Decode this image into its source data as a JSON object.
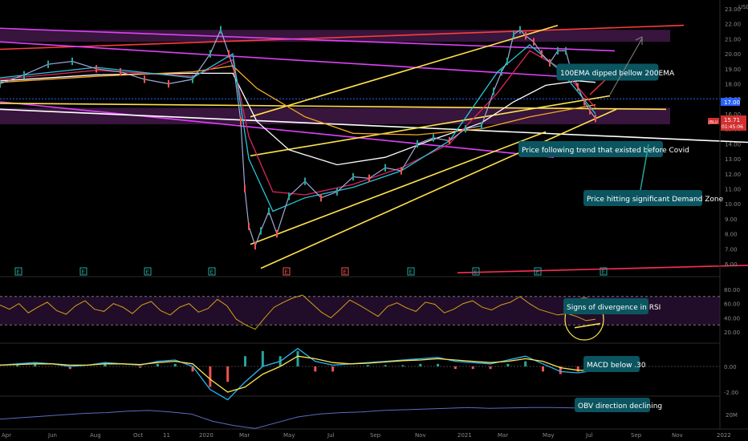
{
  "chart_data": {
    "type": "line",
    "currency": "USD",
    "symbol_label": "JBLU",
    "last_price": "15.71",
    "last_price_countdown": "01:45:06",
    "horizontal_level": "17.00",
    "price_axis": {
      "min": 6.0,
      "max": 23.0,
      "ticks": [
        "23.00",
        "22.00",
        "21.00",
        "20.00",
        "19.00",
        "18.00",
        "17.00",
        "16.00",
        "15.00",
        "14.00",
        "13.00",
        "12.00",
        "11.00",
        "10.00",
        "9.00",
        "8.00",
        "7.00",
        "6.00"
      ]
    },
    "time_axis": [
      "Apr",
      "Jun",
      "Aug",
      "Oct",
      "11",
      "2020",
      "Mar",
      "May",
      "Jul",
      "Sep",
      "Nov",
      "2021",
      "Mar",
      "May",
      "Jul",
      "Sep",
      "Nov",
      "2022"
    ],
    "price_series": {
      "name": "price",
      "x": [
        0,
        30,
        60,
        90,
        120,
        150,
        180,
        210,
        240,
        262,
        275,
        285,
        292,
        300,
        305,
        310,
        318,
        325,
        335,
        345,
        360,
        380,
        400,
        420,
        440,
        460,
        480,
        500,
        520,
        540,
        560,
        580,
        600,
        615,
        625,
        632,
        640,
        648,
        655,
        665,
        675,
        685,
        695,
        705,
        712,
        720,
        728,
        735,
        742
      ],
      "values": [
        18.0,
        18.6,
        19.3,
        19.5,
        19.0,
        18.8,
        18.3,
        18.0,
        18.3,
        20.0,
        21.6,
        20.0,
        18.8,
        15.5,
        11.0,
        8.5,
        7.2,
        8.2,
        9.5,
        8.0,
        10.5,
        11.5,
        10.4,
        10.8,
        11.8,
        11.7,
        12.4,
        12.2,
        14.0,
        14.4,
        14.2,
        15.0,
        15.2,
        17.5,
        18.8,
        19.5,
        21.3,
        21.6,
        21.2,
        20.8,
        20.0,
        19.4,
        20.2,
        20.2,
        18.8,
        17.8,
        16.8,
        16.2,
        15.7
      ]
    },
    "ema_series": [
      {
        "color": "#ffffff",
        "x": [
          0,
          120,
          240,
          290,
          320,
          360,
          420,
          480,
          540,
          600,
          640,
          680,
          720,
          742
        ],
        "values": [
          18.2,
          18.6,
          18.7,
          18.7,
          15.5,
          13.6,
          12.6,
          13.1,
          14.3,
          15.4,
          16.8,
          17.9,
          18.2,
          18.1
        ]
      },
      {
        "color": "#f5a623",
        "x": [
          0,
          120,
          240,
          290,
          320,
          380,
          440,
          520,
          600,
          660,
          720,
          742
        ],
        "values": [
          18.1,
          18.5,
          18.8,
          19.2,
          17.7,
          15.8,
          14.7,
          14.6,
          15.0,
          15.8,
          16.4,
          16.6
        ]
      },
      {
        "color": "#e0245e",
        "x": [
          0,
          120,
          240,
          290,
          310,
          340,
          380,
          440,
          500,
          560,
          620,
          660,
          700,
          742
        ],
        "values": [
          18.3,
          18.9,
          18.5,
          19.6,
          14.5,
          10.8,
          10.6,
          11.3,
          12.4,
          14.0,
          17.4,
          20.2,
          19.0,
          16.4
        ]
      },
      {
        "color": "#26c6da",
        "x": [
          0,
          120,
          240,
          290,
          310,
          340,
          380,
          440,
          500,
          560,
          620,
          660,
          700,
          742
        ],
        "values": [
          18.4,
          19.1,
          18.4,
          20.0,
          13.0,
          9.5,
          10.4,
          11.1,
          12.2,
          14.2,
          18.8,
          20.6,
          18.8,
          16.0
        ]
      }
    ],
    "trend_lines": [
      {
        "color": "#ff3b3b",
        "x": [
          0,
          852
        ],
        "values": [
          20.3,
          21.9
        ]
      },
      {
        "color": "#e040fb",
        "x": [
          0,
          766
        ],
        "values": [
          21.7,
          20.2
        ]
      },
      {
        "color": "#e040fb",
        "x": [
          0,
          757
        ],
        "values": [
          20.8,
          18.3
        ]
      },
      {
        "color": "#e040fb",
        "x": [
          0,
          690
        ],
        "values": [
          16.8,
          13.1
        ]
      },
      {
        "color": "#ffffff",
        "x": [
          0,
          932
        ],
        "values": [
          16.3,
          14.1
        ]
      },
      {
        "color": "#ff2d55",
        "x": [
          570,
          932
        ],
        "values": [
          5.4,
          5.9
        ]
      },
      {
        "color": "#ffe34d",
        "x": [
          312,
          695
        ],
        "values": [
          15.8,
          21.9
        ]
      },
      {
        "color": "#ffe34d",
        "x": [
          312,
          760
        ],
        "values": [
          13.2,
          17.2
        ]
      },
      {
        "color": "#ffe34d",
        "x": [
          325,
          768
        ],
        "values": [
          5.7,
          16.3
        ]
      },
      {
        "color": "#ffe34d",
        "x": [
          312,
          680
        ],
        "values": [
          7.3,
          14.8
        ]
      },
      {
        "color": "#ffe34d",
        "x": [
          0,
          830
        ],
        "values": [
          16.7,
          16.3
        ]
      }
    ],
    "zones": [
      {
        "from": 20.8,
        "to": 21.6,
        "color": "#7a2f86"
      },
      {
        "from": 15.3,
        "to": 16.4,
        "color": "#7a2f86"
      }
    ],
    "earnings_markers": [
      "E",
      "E",
      "E",
      "E",
      "E",
      "E",
      "E",
      "E",
      "E",
      "E",
      "E"
    ],
    "rsi": {
      "ticks": [
        "80.00",
        "60.00",
        "40.00",
        "20.00"
      ],
      "band": [
        30,
        70
      ],
      "values": [
        58,
        52,
        60,
        47,
        55,
        62,
        50,
        45,
        57,
        64,
        52,
        49,
        60,
        55,
        46,
        58,
        63,
        50,
        44,
        55,
        60,
        48,
        53,
        66,
        57,
        38,
        30,
        24,
        40,
        55,
        62,
        68,
        72,
        60,
        48,
        40,
        52,
        65,
        58,
        50,
        42,
        56,
        61,
        54,
        49,
        62,
        59,
        47,
        52,
        60,
        64,
        55,
        51,
        58,
        62,
        70,
        60,
        52,
        48,
        44,
        46,
        42,
        36,
        38
      ]
    },
    "macd": {
      "ticks": [
        "0.00",
        "-2.00"
      ],
      "line": [
        0.1,
        0.2,
        0.3,
        0.2,
        0.0,
        0.1,
        0.3,
        0.2,
        0.1,
        0.4,
        0.5,
        0.0,
        -1.8,
        -2.6,
        -1.2,
        0.0,
        0.4,
        1.4,
        0.4,
        0.1,
        0.2,
        0.3,
        0.4,
        0.5,
        0.6,
        0.7,
        0.4,
        0.3,
        0.2,
        0.5,
        0.8,
        0.2,
        -0.4,
        -0.5,
        -0.3
      ],
      "signal": [
        0.1,
        0.15,
        0.2,
        0.2,
        0.1,
        0.1,
        0.2,
        0.2,
        0.15,
        0.3,
        0.4,
        0.2,
        -1.0,
        -2.0,
        -1.6,
        -0.6,
        0.0,
        0.8,
        0.6,
        0.3,
        0.2,
        0.25,
        0.35,
        0.45,
        0.5,
        0.6,
        0.5,
        0.4,
        0.3,
        0.4,
        0.6,
        0.4,
        -0.1,
        -0.3,
        -0.3
      ]
    },
    "obv": {
      "ticks": [
        "20M"
      ],
      "values": [
        -0.3,
        -0.1,
        0.1,
        0.3,
        0.5,
        0.6,
        0.8,
        0.9,
        0.7,
        0.4,
        -0.6,
        -1.2,
        -1.6,
        -0.8,
        0.0,
        0.4,
        0.6,
        0.7,
        0.9,
        1.0,
        1.1,
        1.2,
        1.3,
        1.2,
        1.25,
        1.3,
        1.3,
        1.25,
        1.2
      ]
    },
    "annotations": {
      "ema_cross": "100EMA dipped bellow 200EMA",
      "trend": "Price following trend that existed before Covid",
      "demand": "Price hitting significant Demand Zone",
      "rsi": "Signs of divergence in RSI",
      "macd": "MACD below .30",
      "obv": "OBV direction declining"
    }
  }
}
